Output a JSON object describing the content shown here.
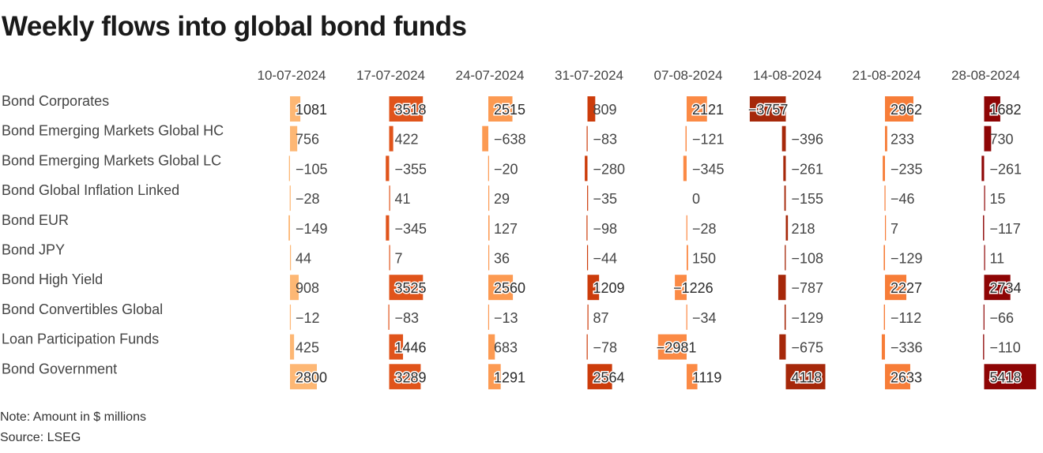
{
  "title": "Weekly flows into global bond funds",
  "note": "Note: Amount in $ millions",
  "source": "Source: LSEG",
  "chart_data": {
    "type": "bar",
    "title": "Weekly flows into global bond funds",
    "columns": [
      "10-07-2024",
      "17-07-2024",
      "24-07-2024",
      "31-07-2024",
      "07-08-2024",
      "14-08-2024",
      "21-08-2024",
      "28-08-2024"
    ],
    "column_colors": [
      "#fdb774",
      "#e0541b",
      "#fc9a52",
      "#cc3c0b",
      "#fb8a45",
      "#a6280a",
      "#f77d38",
      "#8e0505"
    ],
    "rows": [
      {
        "label": "Bond Corporates",
        "values": [
          1081,
          3518,
          2515,
          809,
          2121,
          -3757,
          2962,
          1682
        ]
      },
      {
        "label": "Bond Emerging Markets Global HC",
        "values": [
          756,
          422,
          -638,
          -83,
          -121,
          -396,
          233,
          730
        ]
      },
      {
        "label": "Bond Emerging Markets Global LC",
        "values": [
          -105,
          -355,
          -20,
          -280,
          -345,
          -261,
          -235,
          -261
        ]
      },
      {
        "label": "Bond Global Inflation Linked",
        "values": [
          -28,
          41,
          29,
          -35,
          0,
          -155,
          -46,
          15
        ]
      },
      {
        "label": "Bond EUR",
        "values": [
          -149,
          -345,
          127,
          -98,
          -28,
          218,
          7,
          -117
        ]
      },
      {
        "label": "Bond JPY",
        "values": [
          44,
          7,
          36,
          -44,
          150,
          -108,
          -129,
          11
        ]
      },
      {
        "label": "Bond High Yield",
        "values": [
          908,
          3525,
          2560,
          1209,
          -1226,
          -787,
          2227,
          2734
        ]
      },
      {
        "label": "Bond Convertibles Global",
        "values": [
          -12,
          -83,
          -13,
          87,
          -34,
          -129,
          -112,
          -66
        ]
      },
      {
        "label": "Loan Participation Funds",
        "values": [
          425,
          1446,
          683,
          -78,
          -2981,
          -675,
          -336,
          -110
        ]
      },
      {
        "label": "Bond Government",
        "values": [
          2800,
          3289,
          1291,
          2564,
          1119,
          4118,
          2633,
          5418
        ]
      }
    ],
    "grid": false
  }
}
